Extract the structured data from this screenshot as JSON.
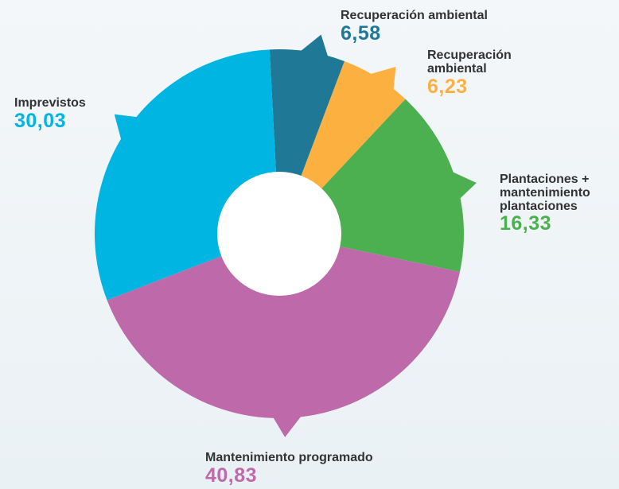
{
  "chart_data": {
    "type": "donut",
    "categories": [
      "Recuperación ambiental",
      "Recuperación ambiental",
      "Plantaciones + mantenimiento plantaciones",
      "Mantenimiento programado",
      "Imprevistos"
    ],
    "values": [
      6.58,
      6.23,
      16.33,
      40.83,
      30.03
    ],
    "value_labels": [
      "6,58",
      "6,23",
      "16,33",
      "40,83",
      "30,03"
    ],
    "colors": [
      "#1f7896",
      "#fbb040",
      "#4cb050",
      "#bd69aa",
      "#00b5e2"
    ]
  }
}
